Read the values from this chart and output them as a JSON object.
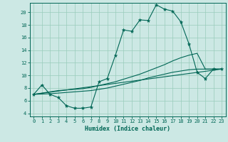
{
  "xlabel": "Humidex (Indice chaleur)",
  "bg_color": "#cce8e4",
  "line_color": "#006655",
  "grid_color": "#99ccbb",
  "xlim": [
    -0.5,
    23.5
  ],
  "ylim": [
    3.5,
    21.5
  ],
  "xticks": [
    0,
    1,
    2,
    3,
    4,
    5,
    6,
    7,
    8,
    9,
    10,
    11,
    12,
    13,
    14,
    15,
    16,
    17,
    18,
    19,
    20,
    21,
    22,
    23
  ],
  "yticks": [
    4,
    6,
    8,
    10,
    12,
    14,
    16,
    18,
    20
  ],
  "curve1_x": [
    0,
    1,
    2,
    3,
    4,
    5,
    6,
    7,
    8,
    9,
    10,
    11,
    12,
    13,
    14,
    15,
    16,
    17,
    18,
    19,
    20,
    21,
    22,
    23
  ],
  "curve1_y": [
    7.0,
    8.5,
    7.0,
    6.5,
    5.2,
    4.8,
    4.8,
    5.0,
    9.0,
    9.5,
    13.2,
    17.2,
    17.0,
    18.8,
    18.7,
    21.2,
    20.5,
    20.2,
    18.5,
    15.0,
    10.5,
    9.5,
    11.0,
    11.0
  ],
  "curve2_x": [
    0,
    1,
    2,
    3,
    4,
    5,
    6,
    7,
    8,
    9,
    10,
    11,
    12,
    13,
    14,
    15,
    16,
    17,
    18,
    19,
    20,
    21,
    22,
    23
  ],
  "curve2_y": [
    7.0,
    7.2,
    7.4,
    7.6,
    7.7,
    7.8,
    7.9,
    8.1,
    8.4,
    8.7,
    9.0,
    9.4,
    9.8,
    10.2,
    10.7,
    11.2,
    11.7,
    12.3,
    12.8,
    13.2,
    13.5,
    11.0,
    11.0,
    11.0
  ],
  "curve3_x": [
    0,
    1,
    2,
    3,
    4,
    5,
    6,
    7,
    8,
    9,
    10,
    11,
    12,
    13,
    14,
    15,
    16,
    17,
    18,
    19,
    20,
    21,
    22,
    23
  ],
  "curve3_y": [
    7.0,
    7.05,
    7.1,
    7.2,
    7.3,
    7.4,
    7.5,
    7.6,
    7.8,
    8.0,
    8.3,
    8.6,
    8.9,
    9.2,
    9.6,
    9.9,
    10.2,
    10.5,
    10.7,
    10.9,
    11.0,
    11.0,
    11.0,
    11.0
  ],
  "curve4_x": [
    0,
    23
  ],
  "curve4_y": [
    7.0,
    11.0
  ]
}
